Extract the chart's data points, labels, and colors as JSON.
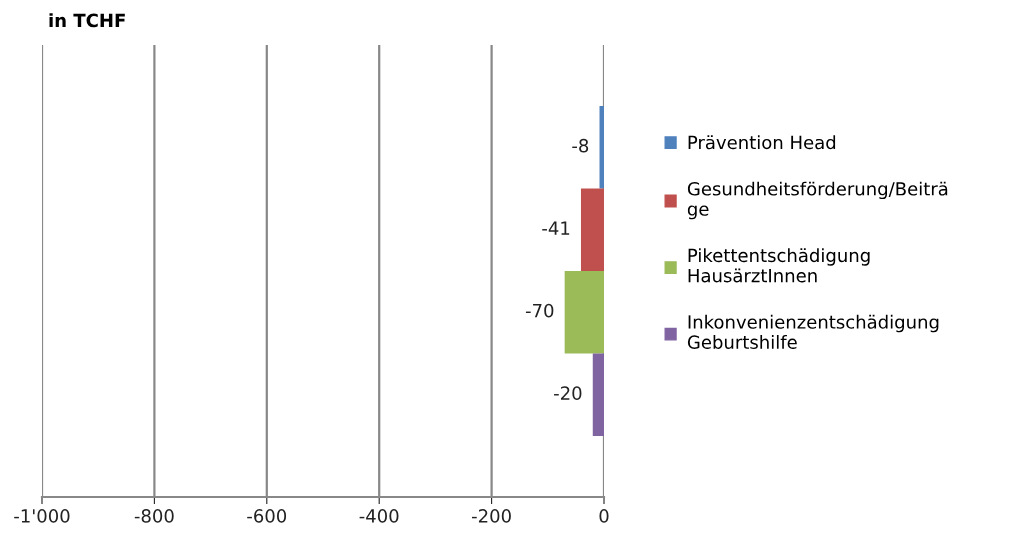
{
  "chart_data": {
    "type": "bar",
    "orientation": "horizontal",
    "title": "in TCHF",
    "categories": [
      null
    ],
    "series": [
      {
        "name": "Prävention Head",
        "color": "#4f81bd",
        "values": [
          -8
        ]
      },
      {
        "name": "Gesundheitsförderung/Beiträge",
        "color": "#c0504d",
        "values": [
          -41
        ]
      },
      {
        "name": "Pikettentschädigung HausärztInnen",
        "color": "#9bbb59",
        "values": [
          -70
        ]
      },
      {
        "name": "Inkonvenienzentschädigung Geburtshilfe",
        "color": "#8064a2",
        "values": [
          -20
        ]
      }
    ],
    "xlim": [
      -1000,
      0
    ],
    "xticks": [
      {
        "value": -1000,
        "label": "-1'000"
      },
      -800,
      -600,
      -400,
      -200,
      0
    ],
    "grid": "x",
    "legend": "right",
    "data_labels": true
  }
}
